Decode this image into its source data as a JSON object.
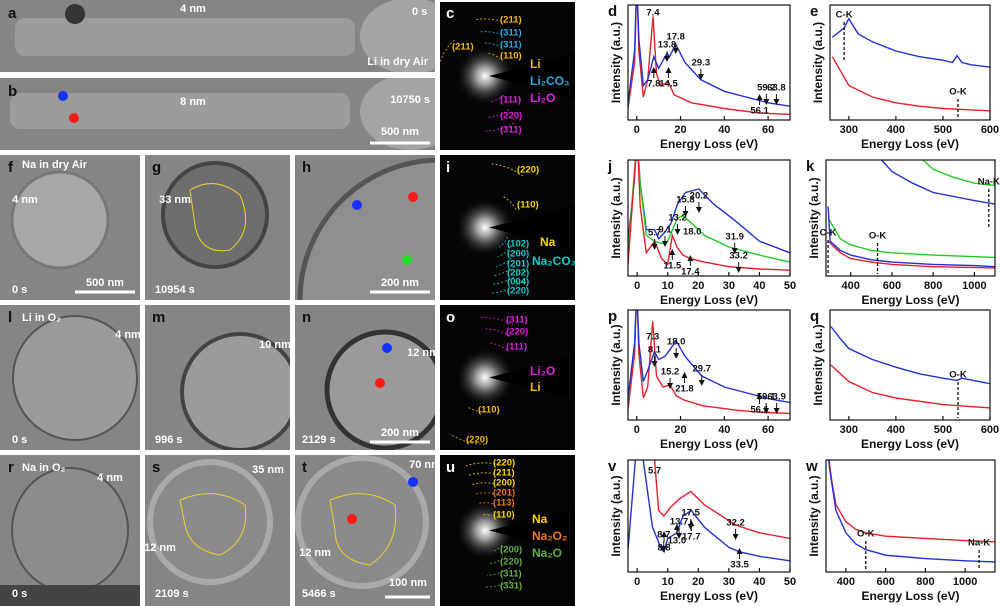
{
  "images": [
    {
      "letter": "a",
      "notes": [
        "4 nm",
        "0 s",
        "Li in dry Air"
      ]
    },
    {
      "letter": "b",
      "notes": [
        "8 nm",
        "10750 s",
        "500 nm"
      ]
    },
    {
      "letter": "f",
      "notes": [
        "Na in dry Air",
        "4 nm",
        "0 s",
        "500 nm"
      ]
    },
    {
      "letter": "g",
      "notes": [
        "33 nm",
        "10954 s"
      ]
    },
    {
      "letter": "h",
      "notes": [
        "200 nm"
      ]
    },
    {
      "letter": "l",
      "notes": [
        "Li in O₂",
        "4 nm",
        "0 s"
      ]
    },
    {
      "letter": "m",
      "notes": [
        "10 nm",
        "996 s"
      ]
    },
    {
      "letter": "n",
      "notes": [
        "12 nm",
        "2129 s",
        "200 nm"
      ]
    },
    {
      "letter": "r",
      "notes": [
        "Na in O₂",
        "4 nm",
        "0 s"
      ]
    },
    {
      "letter": "s",
      "notes": [
        "35 nm",
        "12 nm",
        "2109 s"
      ]
    },
    {
      "letter": "t",
      "notes": [
        "70 nm",
        "12 nm",
        "5466 s",
        "100 nm"
      ]
    }
  ],
  "diffraction": [
    {
      "letter": "c",
      "rings": [
        {
          "label": "(211)",
          "color": "#f5b800"
        },
        {
          "label": "(311)",
          "color": "#29abe2"
        },
        {
          "label": "(311)",
          "color": "#29abe2"
        },
        {
          "label": "(110)",
          "color": "#f5b800"
        },
        {
          "label": "(211)",
          "color": "#f5b800"
        },
        {
          "label": "(111)",
          "color": "#e020e0"
        },
        {
          "label": "(220)",
          "color": "#e020e0"
        },
        {
          "label": "(311)",
          "color": "#e020e0"
        }
      ],
      "legend": [
        {
          "label": "Li",
          "color": "#f5b800"
        },
        {
          "label": "Li₂CO₃",
          "color": "#29abe2"
        },
        {
          "label": "Li₂O",
          "color": "#e020e0"
        }
      ]
    },
    {
      "letter": "i",
      "rings": [
        {
          "label": "(220)",
          "color": "#ffd400"
        },
        {
          "label": "(110)",
          "color": "#ffd400"
        },
        {
          "label": "(102)",
          "color": "#00d0d0"
        },
        {
          "label": "(200)",
          "color": "#00d0d0"
        },
        {
          "label": "(201)",
          "color": "#00d0d0"
        },
        {
          "label": "(202)",
          "color": "#00d0d0"
        },
        {
          "label": "(004)",
          "color": "#00d0d0"
        },
        {
          "label": "(220)",
          "color": "#00d0d0"
        }
      ],
      "legend": [
        {
          "label": "Na",
          "color": "#ffd400"
        },
        {
          "label": "Na₂CO₃",
          "color": "#00d0d0"
        }
      ]
    },
    {
      "letter": "o",
      "rings": [
        {
          "label": "(311)",
          "color": "#e020e0"
        },
        {
          "label": "(220)",
          "color": "#e020e0"
        },
        {
          "label": "(111)",
          "color": "#e020e0"
        },
        {
          "label": "(110)",
          "color": "#f5b800"
        },
        {
          "label": "(220)",
          "color": "#f5b800"
        }
      ],
      "legend": [
        {
          "label": "Li₂O",
          "color": "#e020e0"
        },
        {
          "label": "Li",
          "color": "#f5b800"
        }
      ]
    },
    {
      "letter": "u",
      "rings": [
        {
          "label": "(220)",
          "color": "#ffd400"
        },
        {
          "label": "(211)",
          "color": "#ffd400"
        },
        {
          "label": "(200)",
          "color": "#ffd400"
        },
        {
          "label": "(201)",
          "color": "#f07820"
        },
        {
          "label": "(113)",
          "color": "#f07820"
        },
        {
          "label": "(110)",
          "color": "#ffd400"
        },
        {
          "label": "(200)",
          "color": "#60b040"
        },
        {
          "label": "(220)",
          "color": "#60b040"
        },
        {
          "label": "(311)",
          "color": "#60b040"
        },
        {
          "label": "(331)",
          "color": "#60b040"
        }
      ],
      "legend": [
        {
          "label": "Na",
          "color": "#ffd400"
        },
        {
          "label": "Na₂O₂",
          "color": "#f07820"
        },
        {
          "label": "Na₂O",
          "color": "#60b040"
        }
      ]
    }
  ],
  "spectra": [
    {
      "letter": "d",
      "xlabel": "Energy Loss (eV)",
      "ylabel": "Intensity (a.u.)",
      "xlim": [
        -4,
        70
      ],
      "xticks": [
        0,
        20,
        40,
        60
      ],
      "curves": [
        {
          "color": "#e8202a",
          "x": [
            -4,
            -1,
            0,
            1,
            3,
            5,
            7.4,
            9,
            11,
            14.5,
            17,
            25,
            40,
            56,
            70
          ],
          "y": [
            0.1,
            0.5,
            1.2,
            0.6,
            0.2,
            0.35,
            0.9,
            0.4,
            0.3,
            0.33,
            0.22,
            0.15,
            0.1,
            0.06,
            0.05
          ]
        },
        {
          "color": "#2230d8",
          "x": [
            -4,
            -1,
            0,
            1,
            3,
            5,
            7.8,
            10,
            13.8,
            15,
            17.8,
            22,
            29.3,
            40,
            60,
            70
          ],
          "y": [
            0.15,
            0.6,
            1.2,
            0.7,
            0.3,
            0.35,
            0.55,
            0.45,
            0.58,
            0.55,
            0.66,
            0.5,
            0.35,
            0.25,
            0.15,
            0.12
          ]
        }
      ],
      "peaks": [
        7.4,
        13.8,
        17.8,
        29.3,
        59.2,
        63.8,
        7.8,
        14.5,
        56.1
      ]
    },
    {
      "letter": "e",
      "xlabel": "Energy Loss (eV)",
      "ylabel": "Intensity (a.u.)",
      "xlim": [
        260,
        600
      ],
      "xticks": [
        300,
        400,
        500,
        600
      ],
      "curves": [
        {
          "color": "#2230d8",
          "x": [
            265,
            290,
            300,
            320,
            350,
            400,
            450,
            500,
            520,
            530,
            540,
            560,
            600
          ],
          "y": [
            0.72,
            0.8,
            0.88,
            0.75,
            0.68,
            0.6,
            0.55,
            0.52,
            0.5,
            0.56,
            0.5,
            0.48,
            0.46
          ]
        },
        {
          "color": "#e8202a",
          "x": [
            265,
            300,
            350,
            400,
            450,
            500,
            550,
            600
          ],
          "y": [
            0.55,
            0.3,
            0.2,
            0.15,
            0.12,
            0.1,
            0.09,
            0.08
          ]
        }
      ],
      "edges": [
        {
          "label": "C-K",
          "energy": 290
        },
        {
          "label": "O-K",
          "energy": 532
        }
      ]
    },
    {
      "letter": "j",
      "xlabel": "Energy Loss (eV)",
      "ylabel": "Intensity (a.u.)",
      "xlim": [
        -3,
        50
      ],
      "xticks": [
        0,
        10,
        20,
        30,
        40,
        50
      ],
      "curves": [
        {
          "color": "#2230d8",
          "x": [
            -3,
            -1,
            0,
            1,
            3,
            5.7,
            7,
            9.1,
            11,
            13.2,
            15.8,
            20.2,
            25,
            31.9,
            40,
            50
          ],
          "y": [
            0.3,
            0.8,
            1.2,
            0.8,
            0.4,
            0.4,
            0.32,
            0.38,
            0.45,
            0.62,
            0.72,
            0.75,
            0.62,
            0.48,
            0.3,
            0.2
          ]
        },
        {
          "color": "#22cc22",
          "x": [
            -3,
            0,
            1,
            3,
            5.7,
            8,
            10,
            13.2,
            15,
            18,
            22,
            30,
            40,
            50
          ],
          "y": [
            0.2,
            1.2,
            0.8,
            0.35,
            0.3,
            0.28,
            0.3,
            0.5,
            0.52,
            0.45,
            0.35,
            0.25,
            0.18,
            0.12
          ]
        },
        {
          "color": "#e8202a",
          "x": [
            -3,
            0,
            1,
            3,
            5.7,
            8,
            10,
            11.5,
            13,
            15,
            17.4,
            22,
            30,
            40,
            50
          ],
          "y": [
            0.1,
            1.2,
            0.6,
            0.2,
            0.3,
            0.15,
            0.1,
            0.35,
            0.25,
            0.18,
            0.15,
            0.12,
            0.08,
            0.06,
            0.05
          ]
        }
      ],
      "peaks": [
        5.7,
        15.8,
        20.2,
        9.1,
        13.2,
        {
          "value": 18,
          "label": "18.0"
        },
        31.9,
        11.5,
        17.4,
        33.2
      ]
    },
    {
      "letter": "k",
      "xlabel": "Energy Loss (eV)",
      "ylabel": "Intensity (a.u.)",
      "xlim": [
        280,
        1100
      ],
      "xticks": [
        400,
        600,
        800,
        1000
      ],
      "curves": [
        {
          "color": "#2230d8",
          "x": [
            500,
            550,
            600,
            700,
            800,
            1000,
            1100
          ],
          "y": [
            1.2,
            1.0,
            0.9,
            0.8,
            0.72,
            0.65,
            0.62
          ]
        },
        {
          "color": "#22cc22",
          "x": [
            700,
            750,
            800,
            900,
            1000,
            1100
          ],
          "y": [
            1.2,
            1.0,
            0.92,
            0.85,
            0.8,
            0.78
          ]
        },
        {
          "color": "#22cc22",
          "x": [
            290,
            350,
            400,
            500,
            600,
            800,
            1100
          ],
          "y": [
            0.5,
            0.32,
            0.27,
            0.22,
            0.2,
            0.18,
            0.16
          ]
        },
        {
          "color": "#2230d8",
          "x": [
            290,
            300,
            350,
            400,
            500,
            600,
            800,
            1000,
            1100
          ],
          "y": [
            0.6,
            0.3,
            0.22,
            0.18,
            0.14,
            0.12,
            0.1,
            0.09,
            0.08
          ]
        },
        {
          "color": "#e8202a",
          "x": [
            290,
            350,
            400,
            500,
            600,
            800,
            1100
          ],
          "y": [
            0.3,
            0.2,
            0.15,
            0.12,
            0.1,
            0.08,
            0.07
          ]
        }
      ],
      "edges": [
        {
          "label": "C-K",
          "energy": 290
        },
        {
          "label": "O-K",
          "energy": 530
        },
        {
          "label": "Na-K",
          "energy": 1070
        }
      ]
    },
    {
      "letter": "p",
      "xlabel": "Energy Loss (eV)",
      "ylabel": "Intensity (a.u.)",
      "xlim": [
        -4,
        70
      ],
      "xticks": [
        0,
        20,
        40,
        60
      ],
      "curves": [
        {
          "color": "#e8202a",
          "x": [
            -4,
            -1,
            0,
            1,
            3,
            5,
            7.3,
            9,
            12,
            15.2,
            18,
            21.8,
            30,
            45,
            56.1,
            70
          ],
          "y": [
            0.1,
            0.6,
            1.2,
            0.6,
            0.2,
            0.3,
            0.9,
            0.4,
            0.3,
            0.32,
            0.22,
            0.18,
            0.13,
            0.09,
            0.07,
            0.06
          ]
        },
        {
          "color": "#2230d8",
          "x": [
            -4,
            -1,
            0,
            1,
            3,
            5,
            8.1,
            10,
            13,
            18,
            22,
            29.7,
            40,
            59.1,
            63.9,
            70
          ],
          "y": [
            0.2,
            0.7,
            1.2,
            0.7,
            0.35,
            0.45,
            0.62,
            0.55,
            0.58,
            0.72,
            0.58,
            0.4,
            0.3,
            0.2,
            0.18,
            0.16
          ]
        }
      ],
      "peaks": [
        7.3,
        8.1,
        {
          "value": 18,
          "label": "18.0"
        },
        15.2,
        21.8,
        29.7,
        59.1,
        63.9,
        56.1
      ]
    },
    {
      "letter": "q",
      "xlabel": "Energy Loss (eV)",
      "ylabel": "Intensity (a.u.)",
      "xlim": [
        260,
        600
      ],
      "xticks": [
        300,
        400,
        500,
        600
      ],
      "curves": [
        {
          "color": "#2230d8",
          "x": [
            262,
            280,
            300,
            350,
            400,
            450,
            500,
            530,
            540,
            600
          ],
          "y": [
            0.85,
            0.75,
            0.65,
            0.55,
            0.48,
            0.42,
            0.38,
            0.36,
            0.38,
            0.33
          ]
        },
        {
          "color": "#e8202a",
          "x": [
            262,
            300,
            350,
            400,
            500,
            600
          ],
          "y": [
            0.5,
            0.35,
            0.25,
            0.2,
            0.14,
            0.11
          ]
        }
      ],
      "edges": [
        {
          "label": "O-K",
          "energy": 532
        }
      ]
    },
    {
      "letter": "v",
      "xlabel": "Energy Loss (eV)",
      "ylabel": "Intensity (a.u.)",
      "xlim": [
        -3,
        50
      ],
      "xticks": [
        0,
        10,
        20,
        30,
        40,
        50
      ],
      "curves": [
        {
          "color": "#e8202a",
          "x": [
            -3,
            0,
            3,
            5.7,
            7,
            8.7,
            11,
            13.7,
            17.5,
            22,
            32.2,
            40,
            50
          ],
          "y": [
            1.2,
            1.2,
            1.2,
            1.0,
            0.55,
            0.5,
            0.58,
            0.65,
            0.72,
            0.6,
            0.42,
            0.35,
            0.3
          ]
        },
        {
          "color": "#2230d8",
          "x": [
            -3,
            0,
            1,
            3,
            5,
            8,
            8.8,
            10,
            13,
            15,
            17.7,
            22,
            30,
            33.5,
            40,
            50
          ],
          "y": [
            0.2,
            1.2,
            1.2,
            0.8,
            0.4,
            0.2,
            0.18,
            0.3,
            0.35,
            0.5,
            0.55,
            0.4,
            0.22,
            0.18,
            0.14,
            0.1
          ]
        }
      ],
      "peaks": [
        5.7,
        13.7,
        17.5,
        8.7,
        17.7,
        32.2,
        8.8,
        {
          "value": 13,
          "label": "13.0"
        },
        33.5
      ]
    },
    {
      "letter": "w",
      "xlabel": "Energy Loss (eV)",
      "ylabel": "Intensity (a.u.)",
      "xlim": [
        300,
        1150
      ],
      "xticks": [
        400,
        600,
        800,
        1000
      ],
      "curves": [
        {
          "color": "#e8202a",
          "x": [
            300,
            330,
            350,
            400,
            450,
            500,
            600,
            800,
            1000,
            1150
          ],
          "y": [
            1.2,
            0.8,
            0.6,
            0.45,
            0.38,
            0.35,
            0.32,
            0.3,
            0.28,
            0.27
          ]
        },
        {
          "color": "#2230d8",
          "x": [
            300,
            320,
            350,
            400,
            450,
            500,
            600,
            800,
            1000,
            1150
          ],
          "y": [
            1.2,
            0.9,
            0.55,
            0.35,
            0.25,
            0.2,
            0.15,
            0.12,
            0.1,
            0.09
          ]
        }
      ],
      "edges": [
        {
          "label": "O-K",
          "energy": 500
        },
        {
          "label": "Na-K",
          "energy": 1070
        }
      ]
    }
  ]
}
